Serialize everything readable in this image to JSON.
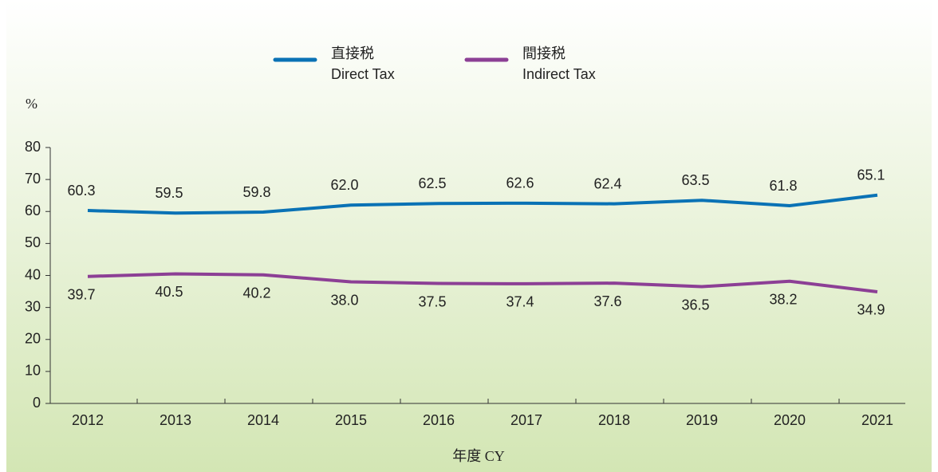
{
  "chart_data": {
    "type": "line",
    "ylabel": "%",
    "xlabel": "年度 CY",
    "categories": [
      "2012",
      "2013",
      "2014",
      "2015",
      "2016",
      "2017",
      "2018",
      "2019",
      "2020",
      "2021"
    ],
    "series": [
      {
        "name": "直接税\nDirect Tax",
        "color": "#0a72b5",
        "values": [
          60.3,
          59.5,
          59.8,
          62.0,
          62.5,
          62.6,
          62.4,
          63.5,
          61.8,
          65.1
        ],
        "value_labels": [
          "60.3",
          "59.5",
          "59.8",
          "62.0",
          "62.5",
          "62.6",
          "62.4",
          "63.5",
          "61.8",
          "65.1"
        ]
      },
      {
        "name": "間接税\nIndirect Tax",
        "color": "#8c3f95",
        "values": [
          39.7,
          40.5,
          40.2,
          38.0,
          37.5,
          37.4,
          37.6,
          36.5,
          38.2,
          34.9
        ],
        "value_labels": [
          "39.7",
          "40.5",
          "40.2",
          "38.0",
          "37.5",
          "37.4",
          "37.6",
          "36.5",
          "38.2",
          "34.9"
        ]
      }
    ],
    "ylim": [
      0,
      80
    ],
    "yticks": [
      0,
      10,
      20,
      30,
      40,
      50,
      60,
      70,
      80
    ]
  }
}
